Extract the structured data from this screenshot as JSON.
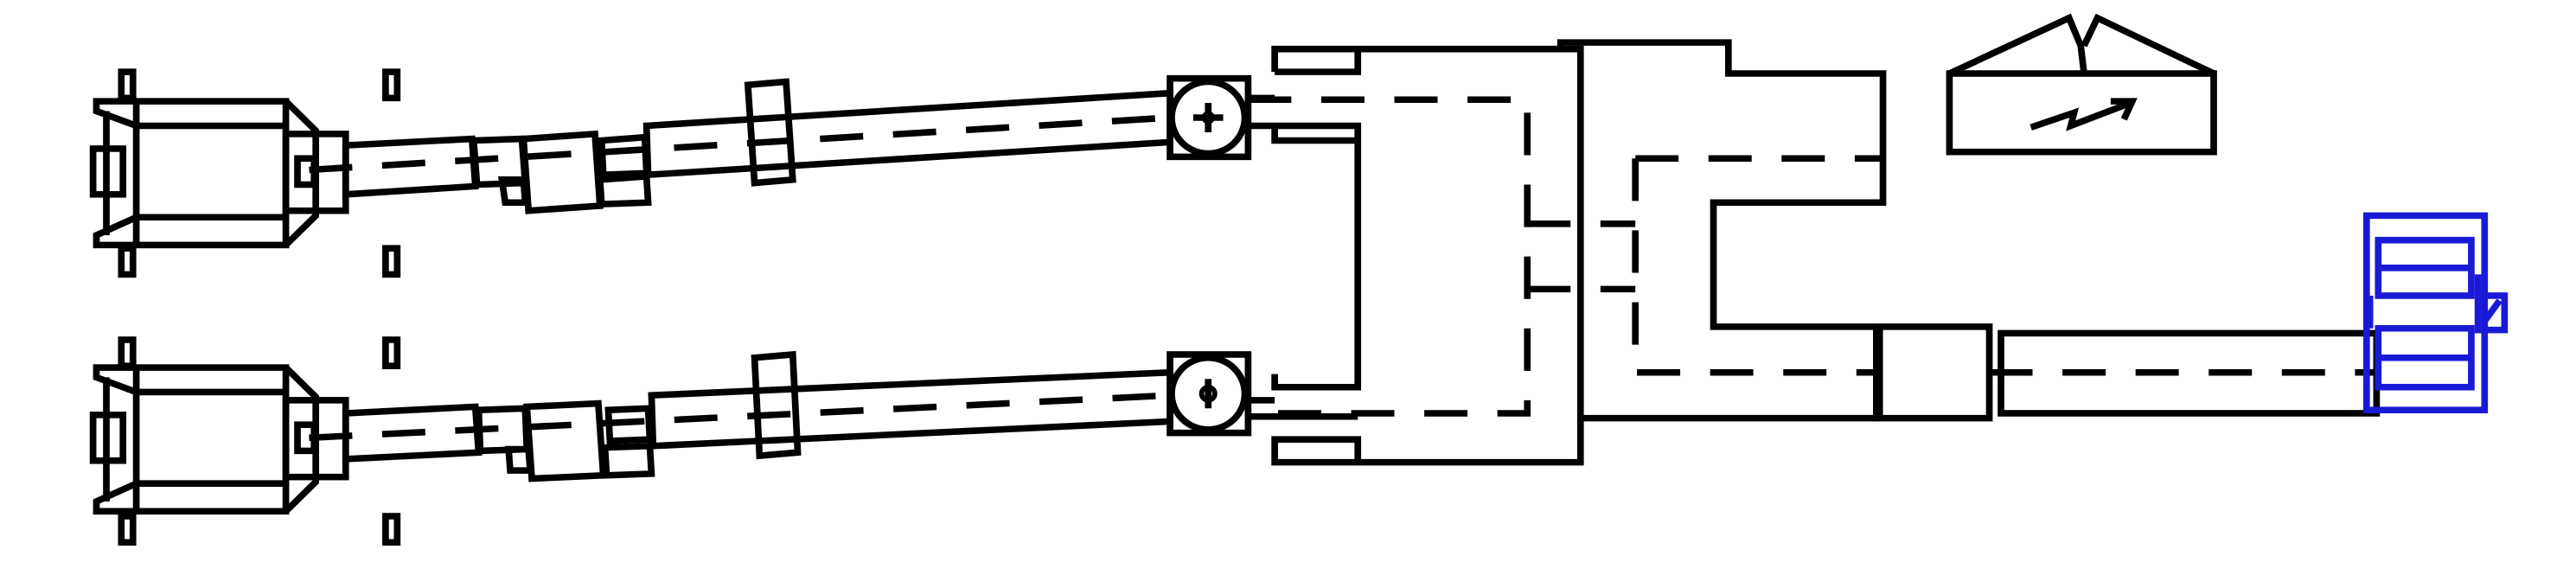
{
  "colors": {
    "line": "#000000",
    "highlight": "#1a1ad6",
    "background": "#ffffff"
  },
  "icons": {
    "electric_symbol": "lightning-arrow-icon",
    "coupling_symbol": "circle-cross-icon",
    "pump_symbol": "circle-phi-icon"
  }
}
